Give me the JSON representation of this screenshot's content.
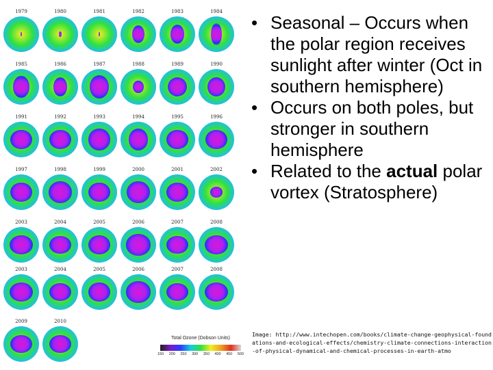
{
  "maps": [
    {
      "year": "1979",
      "hole": [
        0.05,
        0.1
      ]
    },
    {
      "year": "1980",
      "hole": [
        0.06,
        0.15
      ]
    },
    {
      "year": "1981",
      "hole": [
        0.05,
        0.1
      ]
    },
    {
      "year": "1982",
      "hole": [
        0.35,
        0.5
      ]
    },
    {
      "year": "1983",
      "hole": [
        0.4,
        0.55
      ]
    },
    {
      "year": "1984",
      "hole": [
        0.3,
        0.6
      ]
    },
    {
      "year": "1985",
      "hole": [
        0.45,
        0.6
      ]
    },
    {
      "year": "1986",
      "hole": [
        0.4,
        0.55
      ]
    },
    {
      "year": "1987",
      "hole": [
        0.55,
        0.65
      ]
    },
    {
      "year": "1988",
      "hole": [
        0.3,
        0.35
      ]
    },
    {
      "year": "1989",
      "hole": [
        0.55,
        0.55
      ]
    },
    {
      "year": "1990",
      "hole": [
        0.5,
        0.55
      ]
    },
    {
      "year": "1991",
      "hole": [
        0.6,
        0.55
      ]
    },
    {
      "year": "1992",
      "hole": [
        0.6,
        0.55
      ]
    },
    {
      "year": "1993",
      "hole": [
        0.6,
        0.6
      ]
    },
    {
      "year": "1994",
      "hole": [
        0.55,
        0.6
      ]
    },
    {
      "year": "1995",
      "hole": [
        0.6,
        0.55
      ]
    },
    {
      "year": "1996",
      "hole": [
        0.6,
        0.55
      ]
    },
    {
      "year": "1997",
      "hole": [
        0.6,
        0.55
      ]
    },
    {
      "year": "1998",
      "hole": [
        0.65,
        0.6
      ]
    },
    {
      "year": "1999",
      "hole": [
        0.6,
        0.55
      ]
    },
    {
      "year": "2000",
      "hole": [
        0.65,
        0.6
      ]
    },
    {
      "year": "2001",
      "hole": [
        0.6,
        0.55
      ]
    },
    {
      "year": "2002",
      "hole": [
        0.35,
        0.3
      ]
    },
    {
      "year": "2003",
      "hole": [
        0.65,
        0.55
      ]
    },
    {
      "year": "2004",
      "hole": [
        0.6,
        0.5
      ]
    },
    {
      "year": "2005",
      "hole": [
        0.6,
        0.55
      ]
    },
    {
      "year": "2006",
      "hole": [
        0.7,
        0.6
      ]
    },
    {
      "year": "2007",
      "hole": [
        0.6,
        0.5
      ]
    },
    {
      "year": "2008",
      "hole": [
        0.65,
        0.55
      ]
    },
    {
      "year": "2003",
      "hole": [
        0.65,
        0.55
      ]
    },
    {
      "year": "2004",
      "hole": [
        0.6,
        0.5
      ]
    },
    {
      "year": "2005",
      "hole": [
        0.6,
        0.55
      ]
    },
    {
      "year": "2006",
      "hole": [
        0.7,
        0.6
      ]
    },
    {
      "year": "2007",
      "hole": [
        0.6,
        0.5
      ]
    },
    {
      "year": "2008",
      "hole": [
        0.65,
        0.55
      ]
    },
    {
      "year": "2009",
      "hole": [
        0.6,
        0.5
      ]
    },
    {
      "year": "2010",
      "hole": [
        0.6,
        0.5
      ]
    }
  ],
  "legend": {
    "title": "Total Ozone (Dobson Units)",
    "ticks": [
      "150",
      "200",
      "250",
      "300",
      "350",
      "400",
      "450",
      "500"
    ]
  },
  "bullets": [
    {
      "text": "Seasonal – Occurs when the polar region receives sunlight after winter (Oct in southern hemisphere)",
      "bold_tail": ""
    },
    {
      "text": "Occurs on both poles, but stronger in southern hemisphere",
      "bold_tail": ""
    },
    {
      "text": "Related to the ",
      "bold_tail": "actual",
      "after": " polar vortex (Stratosphere)"
    }
  ],
  "bullet_symbol": "•",
  "caption": "Image: http://www.intechopen.com/books/climate-change-geophysical-foundations-and-ecological-effects/chemistry-climate-connections-interaction-of-physical-dynamical-and-chemical-processes-in-earth-atmo"
}
